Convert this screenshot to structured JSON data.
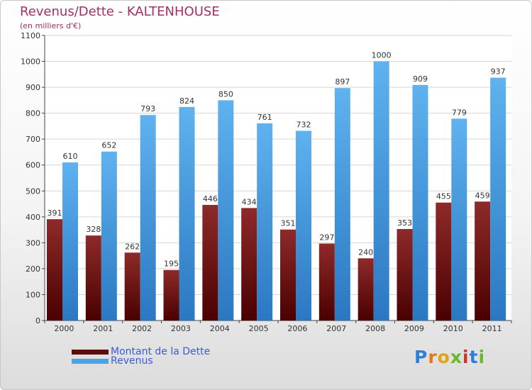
{
  "title": "Revenus/Dette - KALTENHOUSE",
  "subtitle": "(en milliers d'€)",
  "logo": "Proxiti",
  "colors": {
    "title": "#a0306a",
    "dette": "#7a1414",
    "revenus": "#4aa3e6",
    "legend_text": "#3b5bd6"
  },
  "chart_data": {
    "type": "bar",
    "categories": [
      "2000",
      "2001",
      "2002",
      "2003",
      "2004",
      "2005",
      "2006",
      "2007",
      "2008",
      "2009",
      "2010",
      "2011"
    ],
    "series": [
      {
        "name": "Montant de la Dette",
        "values": [
          391,
          328,
          262,
          195,
          446,
          434,
          351,
          297,
          240,
          353,
          455,
          459
        ]
      },
      {
        "name": "Revenus",
        "values": [
          610,
          652,
          793,
          824,
          850,
          761,
          732,
          897,
          1000,
          909,
          779,
          937
        ]
      }
    ],
    "ylim": [
      0,
      1100
    ],
    "yticks": [
      0,
      100,
      200,
      300,
      400,
      500,
      600,
      700,
      800,
      900,
      1000,
      1100
    ],
    "grid": true,
    "legend": "bottom-left"
  }
}
